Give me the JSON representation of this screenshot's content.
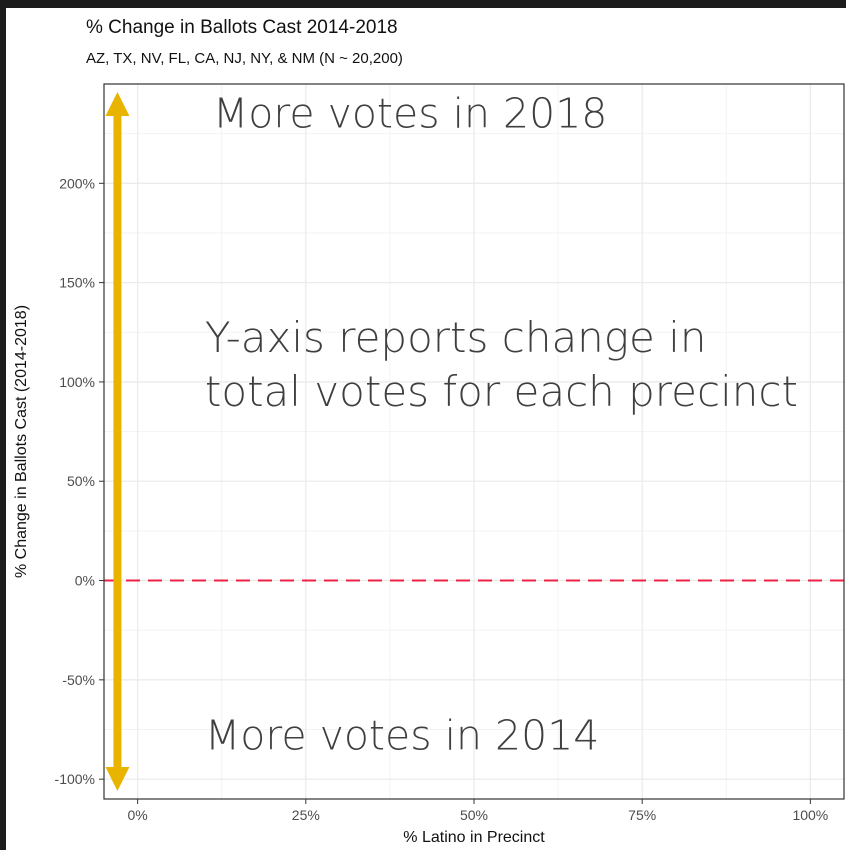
{
  "chart_data": {
    "type": "scatter",
    "title": "% Change in Ballots Cast 2014-2018",
    "subtitle": "AZ, TX, NV, FL, CA, NJ, NY, & NM (N ~ 20,200)",
    "xlabel": "% Latino in Precinct",
    "ylabel": "% Change in Ballots Cast (2014-2018)",
    "xlim": [
      -0.05,
      1.05
    ],
    "ylim": [
      -1.1,
      2.5
    ],
    "x_ticks": [
      0,
      0.25,
      0.5,
      0.75,
      1.0
    ],
    "x_tick_labels": [
      "0%",
      "25%",
      "50%",
      "75%",
      "100%"
    ],
    "y_ticks": [
      -1.0,
      -0.5,
      0,
      0.5,
      1.0,
      1.5,
      2.0
    ],
    "y_tick_labels": [
      "-100%",
      "-50%",
      "0%",
      "50%",
      "100%",
      "150%",
      "200%"
    ],
    "grid": true,
    "points": [],
    "reference_line": {
      "y": 0,
      "style": "dashed",
      "color": "#ee2244"
    },
    "arrow": {
      "x": -0.03,
      "y_from": -1.1,
      "y_to": 2.5,
      "color": "#e8b400",
      "double_headed": true
    },
    "annotations": [
      {
        "text": "More votes in 2018",
        "x": 0.1,
        "y": 2.28
      },
      {
        "text": "Y-axis reports change in",
        "x": 0.1,
        "y": 1.15
      },
      {
        "text": "total votes for each precinct",
        "x": 0.1,
        "y": 0.88
      },
      {
        "text": "More votes in 2014",
        "x": 0.1,
        "y": -0.85
      }
    ],
    "colors": {
      "grid": "#ebebeb",
      "panel_border": "#333333",
      "reference": "#ee2244",
      "arrow": "#e8b400"
    }
  }
}
